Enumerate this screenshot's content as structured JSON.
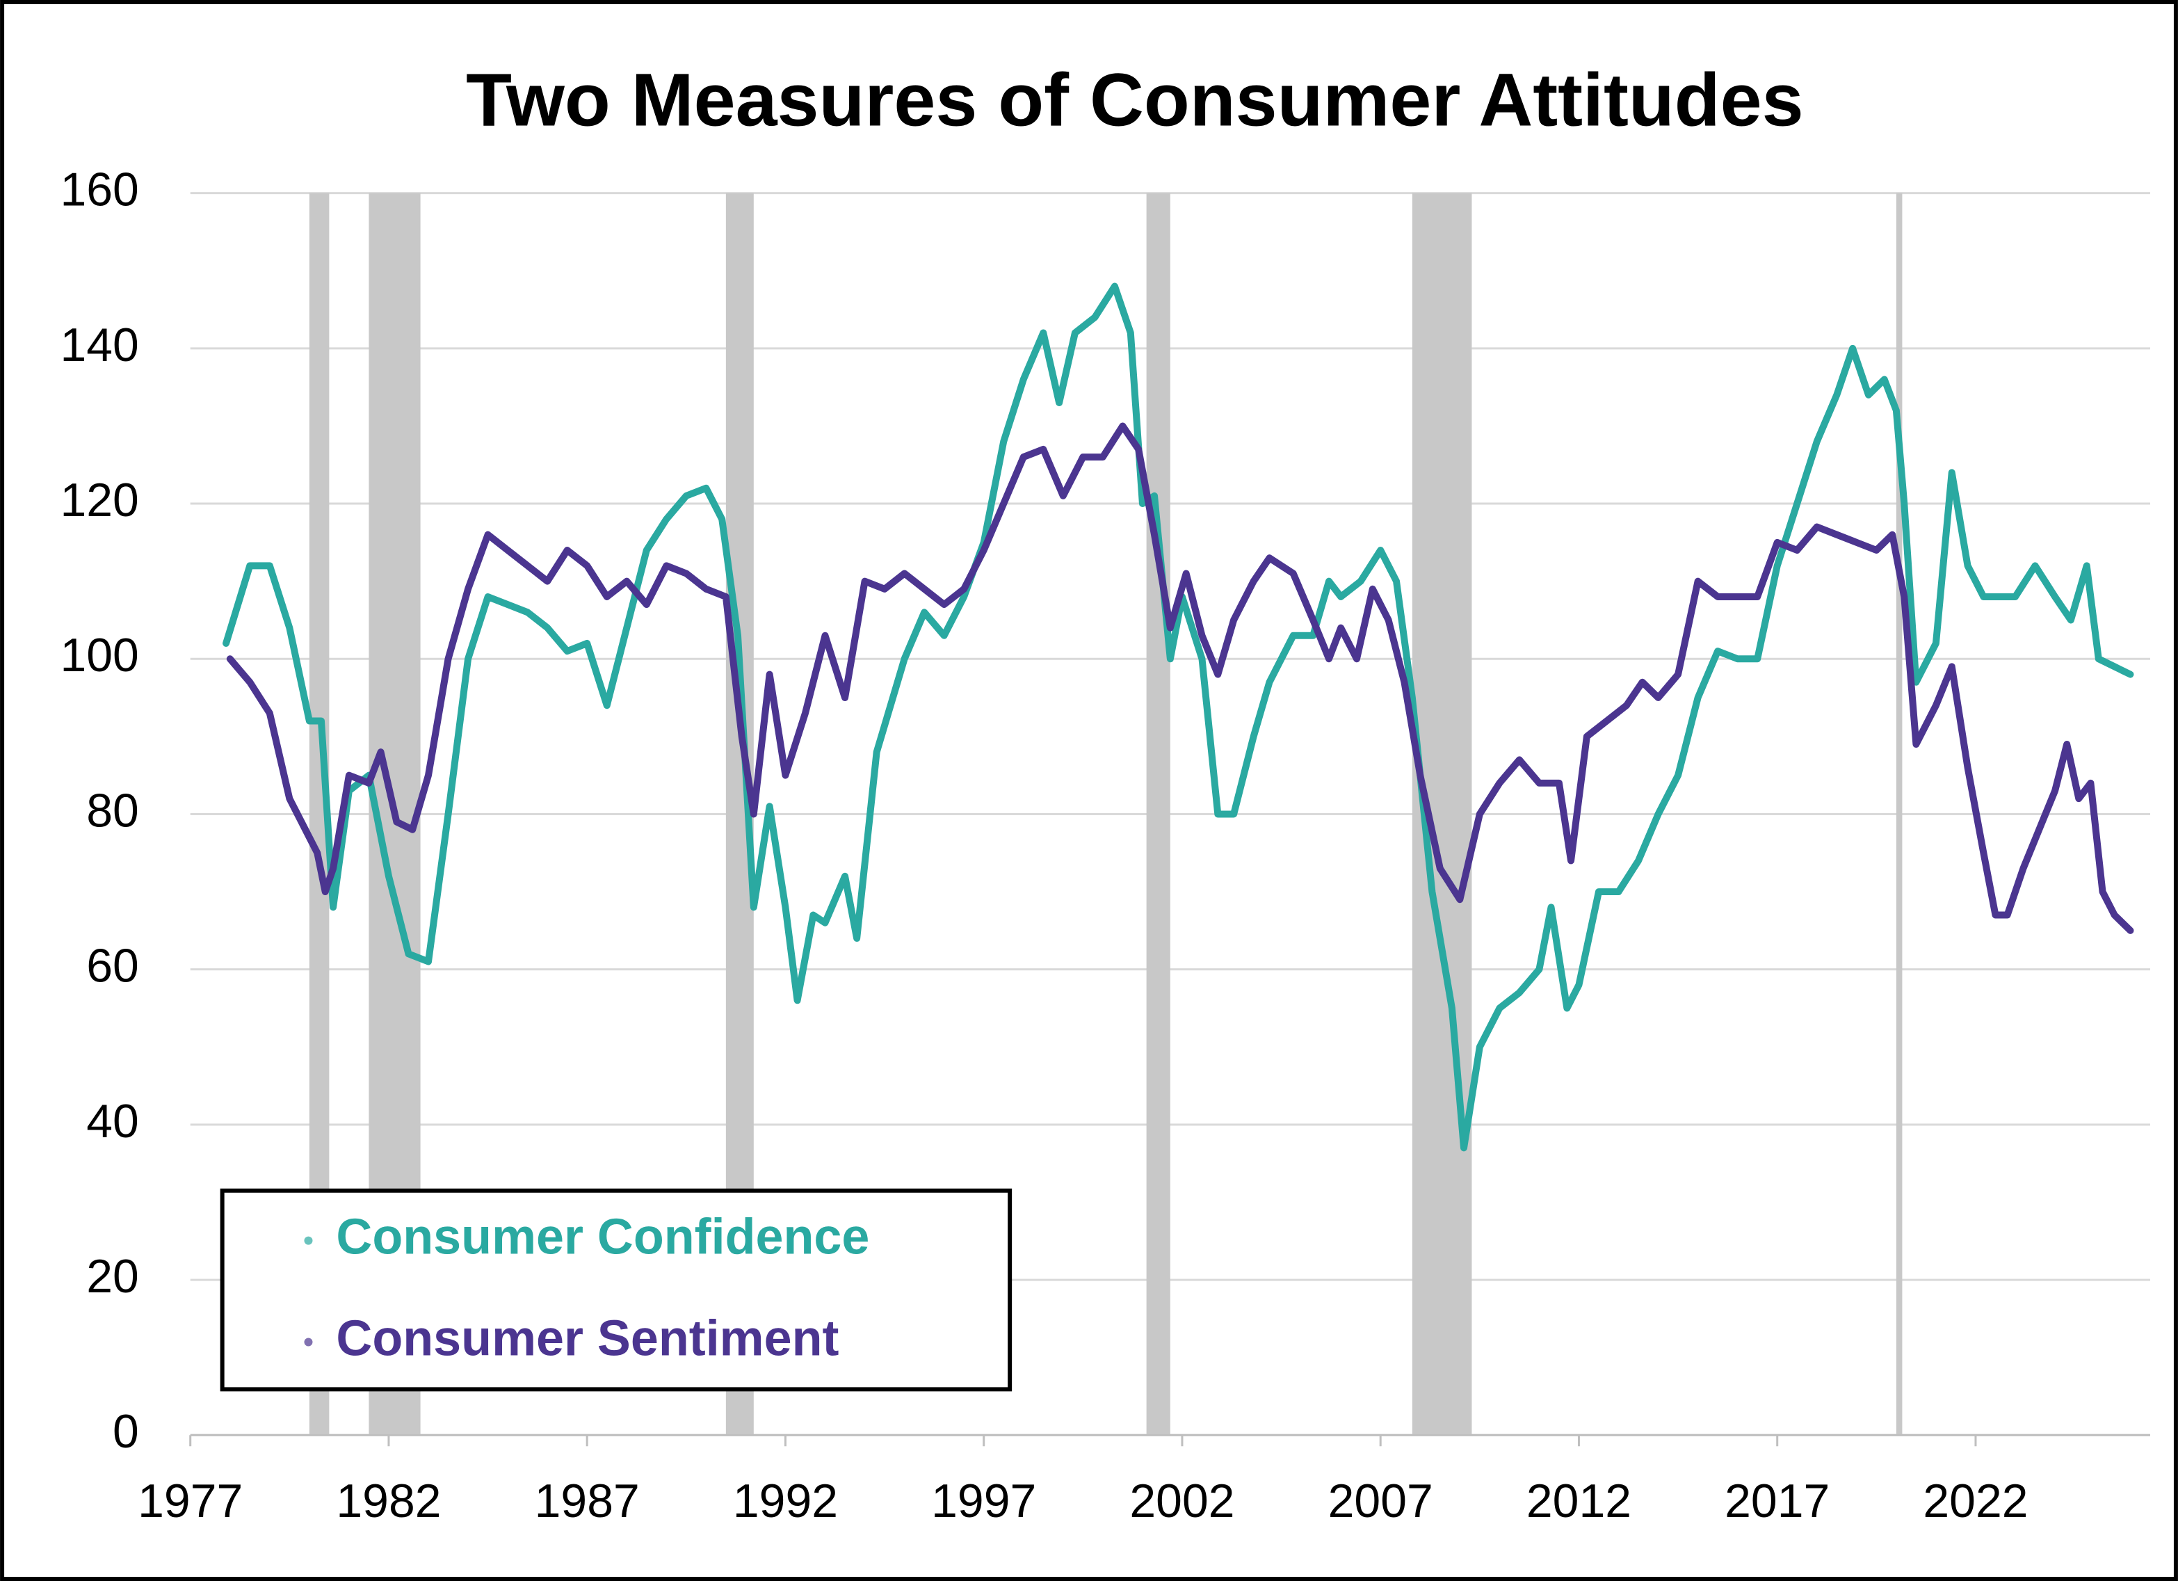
{
  "chart_data": {
    "type": "line",
    "title": "Two Measures of Consumer Attitudes",
    "xlim": [
      1977,
      2026.4
    ],
    "xticks": [
      1977,
      1982,
      1987,
      1992,
      1997,
      2002,
      2007,
      2012,
      2017,
      2022
    ],
    "ylim": [
      0,
      160
    ],
    "yticks": [
      0,
      20,
      40,
      60,
      80,
      100,
      120,
      140,
      160
    ],
    "grid": true,
    "legend": "lower left",
    "shaded_periods": [
      [
        1980.0,
        1980.5
      ],
      [
        1981.5,
        1982.8
      ],
      [
        1990.5,
        1991.2
      ],
      [
        2001.1,
        2001.7
      ],
      [
        2007.8,
        2009.3
      ],
      [
        2020.0,
        2020.15
      ]
    ],
    "shade_color": "#c8c8c8",
    "series": [
      {
        "name": "Consumer Confidence",
        "color": "#2aa9a1",
        "x": [
          1977.9,
          1978.5,
          1979.0,
          1979.5,
          1980.0,
          1980.3,
          1980.6,
          1981.0,
          1981.5,
          1982.0,
          1982.5,
          1983.0,
          1983.5,
          1984.0,
          1984.5,
          1985.0,
          1985.5,
          1986.0,
          1986.5,
          1987.0,
          1987.5,
          1988.0,
          1988.5,
          1989.0,
          1989.5,
          1990.0,
          1990.4,
          1990.8,
          1991.2,
          1991.6,
          1992.0,
          1992.3,
          1992.7,
          1993.0,
          1993.5,
          1993.8,
          1994.3,
          1995.0,
          1995.5,
          1996.0,
          1996.5,
          1997.0,
          1997.5,
          1998.0,
          1998.5,
          1998.9,
          1999.3,
          1999.8,
          2000.3,
          2000.7,
          2001.0,
          2001.3,
          2001.7,
          2002.0,
          2002.5,
          2002.9,
          2003.3,
          2003.8,
          2004.2,
          2004.8,
          2005.3,
          2005.7,
          2006.0,
          2006.5,
          2007.0,
          2007.4,
          2007.8,
          2008.3,
          2008.8,
          2009.1,
          2009.5,
          2010.0,
          2010.5,
          2011.0,
          2011.3,
          2011.7,
          2012.0,
          2012.5,
          2013.0,
          2013.5,
          2014.0,
          2014.5,
          2015.0,
          2015.5,
          2016.0,
          2016.5,
          2017.0,
          2017.5,
          2018.0,
          2018.5,
          2018.9,
          2019.3,
          2019.7,
          2020.0,
          2020.2,
          2020.5,
          2021.0,
          2021.4,
          2021.8,
          2022.2,
          2022.6,
          2023.0,
          2023.5,
          2024.0,
          2024.4,
          2024.8,
          2025.1,
          2025.5,
          2025.9
        ],
        "values": [
          102,
          112,
          112,
          104,
          92,
          92,
          68,
          83,
          85,
          72,
          62,
          61,
          80,
          100,
          108,
          107,
          106,
          104,
          101,
          102,
          94,
          104,
          114,
          118,
          121,
          122,
          118,
          103,
          68,
          81,
          68,
          56,
          67,
          66,
          72,
          64,
          88,
          100,
          106,
          103,
          108,
          115,
          128,
          136,
          142,
          133,
          142,
          144,
          148,
          142,
          120,
          121,
          100,
          108,
          100,
          80,
          80,
          90,
          97,
          103,
          103,
          110,
          108,
          110,
          114,
          110,
          95,
          70,
          55,
          37,
          50,
          55,
          57,
          60,
          68,
          55,
          58,
          70,
          70,
          74,
          80,
          85,
          95,
          101,
          100,
          100,
          112,
          120,
          128,
          134,
          140,
          134,
          136,
          132,
          120,
          97,
          102,
          124,
          112,
          108,
          108,
          108,
          112,
          108,
          105,
          112,
          100,
          99,
          98
        ]
      },
      {
        "name": "Consumer Sentiment",
        "color": "#4b3590",
        "x": [
          1978.0,
          1978.5,
          1979.0,
          1979.5,
          1980.0,
          1980.2,
          1980.4,
          1980.6,
          1981.0,
          1981.5,
          1981.8,
          1982.2,
          1982.6,
          1983.0,
          1983.5,
          1984.0,
          1984.5,
          1985.0,
          1985.5,
          1986.0,
          1986.5,
          1987.0,
          1987.5,
          1988.0,
          1988.5,
          1989.0,
          1989.5,
          1990.0,
          1990.5,
          1990.9,
          1991.2,
          1991.6,
          1992.0,
          1992.5,
          1993.0,
          1993.5,
          1994.0,
          1994.5,
          1995.0,
          1995.5,
          1996.0,
          1996.5,
          1997.0,
          1997.5,
          1998.0,
          1998.5,
          1999.0,
          1999.5,
          2000.0,
          2000.5,
          2000.9,
          2001.3,
          2001.7,
          2002.1,
          2002.5,
          2002.9,
          2003.3,
          2003.8,
          2004.2,
          2004.8,
          2005.3,
          2005.7,
          2006.0,
          2006.4,
          2006.8,
          2007.2,
          2007.6,
          2008.0,
          2008.5,
          2009.0,
          2009.5,
          2010.0,
          2010.5,
          2011.0,
          2011.5,
          2011.8,
          2012.2,
          2012.7,
          2013.2,
          2013.6,
          2014.0,
          2014.5,
          2015.0,
          2015.5,
          2016.0,
          2016.5,
          2017.0,
          2017.5,
          2018.0,
          2018.5,
          2019.0,
          2019.5,
          2019.9,
          2020.2,
          2020.5,
          2021.0,
          2021.4,
          2021.8,
          2022.2,
          2022.5,
          2022.8,
          2023.2,
          2023.6,
          2024.0,
          2024.3,
          2024.6,
          2024.9,
          2025.2,
          2025.5,
          2025.9
        ],
        "values": [
          100,
          97,
          93,
          82,
          77,
          75,
          70,
          73,
          85,
          84,
          88,
          79,
          78,
          85,
          100,
          109,
          116,
          114,
          112,
          110,
          114,
          112,
          108,
          110,
          107,
          112,
          111,
          109,
          108,
          90,
          80,
          98,
          85,
          93,
          103,
          95,
          110,
          109,
          111,
          109,
          107,
          109,
          114,
          120,
          126,
          127,
          121,
          126,
          126,
          130,
          127,
          116,
          104,
          111,
          103,
          98,
          105,
          110,
          113,
          111,
          105,
          100,
          104,
          100,
          109,
          105,
          97,
          85,
          73,
          69,
          80,
          84,
          87,
          84,
          84,
          74,
          90,
          92,
          94,
          97,
          95,
          98,
          110,
          108,
          108,
          108,
          115,
          114,
          117,
          116,
          115,
          114,
          116,
          108,
          89,
          94,
          99,
          86,
          75,
          67,
          67,
          73,
          78,
          83,
          89,
          82,
          84,
          70,
          67,
          65
        ]
      }
    ]
  }
}
